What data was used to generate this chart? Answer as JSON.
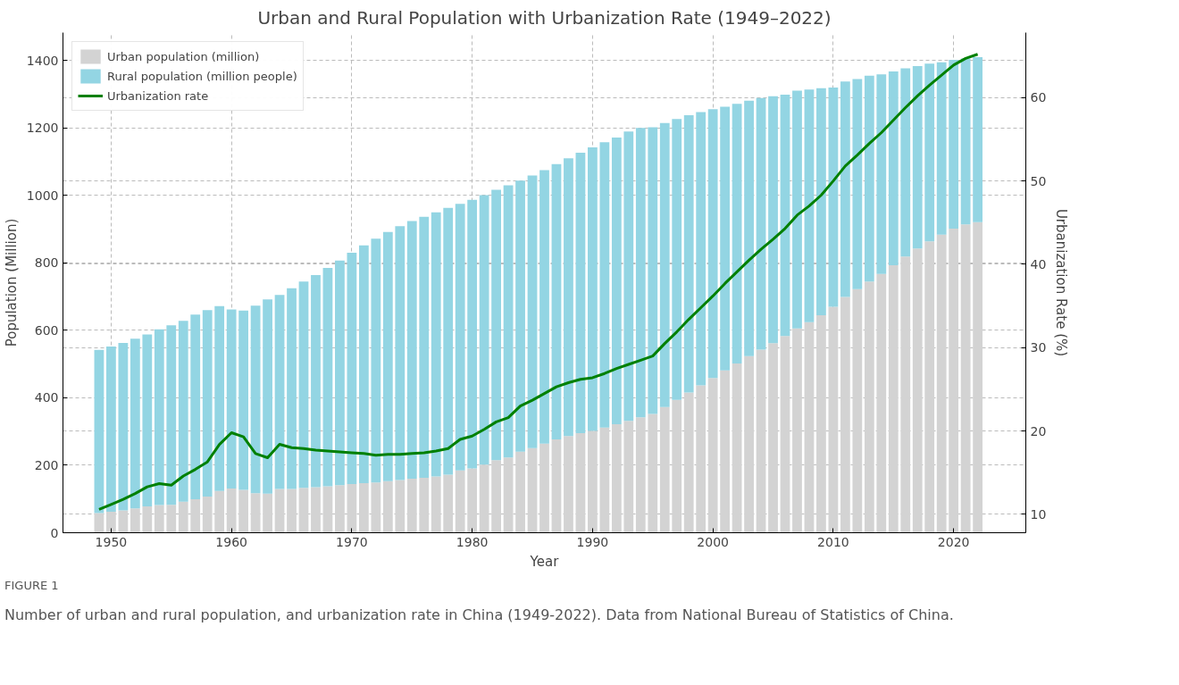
{
  "chart_data": {
    "type": "bar",
    "title": "Urban and Rural Population with Urbanization Rate (1949–2022)",
    "xlabel": "Year",
    "ylabel": "Population (Million)",
    "y2label": "Urbanization Rate (%)",
    "x": [
      1949,
      1950,
      1951,
      1952,
      1953,
      1954,
      1955,
      1956,
      1957,
      1958,
      1959,
      1960,
      1961,
      1962,
      1963,
      1964,
      1965,
      1966,
      1967,
      1968,
      1969,
      1970,
      1971,
      1972,
      1973,
      1974,
      1975,
      1976,
      1977,
      1978,
      1979,
      1980,
      1981,
      1982,
      1983,
      1984,
      1985,
      1986,
      1987,
      1988,
      1989,
      1990,
      1991,
      1992,
      1993,
      1994,
      1995,
      1996,
      1997,
      1998,
      1999,
      2000,
      2001,
      2002,
      2003,
      2004,
      2005,
      2006,
      2007,
      2008,
      2009,
      2010,
      2011,
      2012,
      2013,
      2014,
      2015,
      2016,
      2017,
      2018,
      2019,
      2020,
      2021,
      2022
    ],
    "stacked": true,
    "series": [
      {
        "name": "Urban population (million)",
        "color": "#d3d3d3",
        "values": [
          58,
          62,
          66,
          72,
          78,
          82,
          83,
          92,
          99,
          107,
          124,
          131,
          127,
          117,
          116,
          130,
          130,
          133,
          135,
          138,
          141,
          144,
          147,
          149,
          153,
          156,
          160,
          163,
          167,
          172,
          185,
          191,
          202,
          215,
          223,
          240,
          251,
          264,
          277,
          287,
          295,
          302,
          312,
          322,
          332,
          342,
          352,
          373,
          394,
          416,
          437,
          459,
          481,
          502,
          524,
          543,
          562,
          583,
          606,
          624,
          645,
          670,
          699,
          722,
          745,
          767,
          793,
          819,
          843,
          864,
          884,
          902,
          914,
          921
        ]
      },
      {
        "name": "Rural population (million people)",
        "color": "#93d5e3",
        "values": [
          484,
          490,
          497,
          503,
          510,
          521,
          532,
          536,
          548,
          553,
          548,
          531,
          532,
          556,
          576,
          575,
          595,
          612,
          629,
          647,
          666,
          686,
          705,
          723,
          739,
          753,
          764,
          774,
          783,
          791,
          790,
          796,
          799,
          802,
          807,
          804,
          808,
          811,
          816,
          823,
          832,
          841,
          846,
          850,
          858,
          858,
          850,
          842,
          833,
          822,
          810,
          797,
          782,
          770,
          757,
          746,
          732,
          716,
          705,
          690,
          673,
          650,
          639,
          623,
          610,
          592,
          575,
          558,
          541,
          527,
          511,
          500,
          492,
          489
        ]
      },
      {
        "name": "Urbanization rate",
        "type": "line",
        "axis": "y2",
        "color": "#008000",
        "values": [
          10.6,
          11.2,
          11.8,
          12.5,
          13.3,
          13.7,
          13.5,
          14.6,
          15.4,
          16.3,
          18.4,
          19.8,
          19.3,
          17.3,
          16.8,
          18.4,
          18.0,
          17.9,
          17.7,
          17.6,
          17.5,
          17.4,
          17.3,
          17.1,
          17.2,
          17.2,
          17.3,
          17.4,
          17.6,
          17.9,
          19.0,
          19.4,
          20.2,
          21.1,
          21.6,
          23.0,
          23.7,
          24.5,
          25.3,
          25.8,
          26.2,
          26.4,
          26.9,
          27.5,
          28.0,
          28.5,
          29.0,
          30.5,
          31.9,
          33.4,
          34.8,
          36.2,
          37.7,
          39.1,
          40.5,
          41.8,
          43.0,
          44.3,
          45.9,
          47.0,
          48.3,
          50.0,
          51.8,
          53.1,
          54.5,
          55.8,
          57.3,
          58.8,
          60.2,
          61.5,
          62.7,
          63.9,
          64.7,
          65.2
        ]
      }
    ],
    "xlim": [
      1946,
      2026
    ],
    "xticks": [
      1950,
      1960,
      1970,
      1980,
      1990,
      2000,
      2010,
      2020
    ],
    "ylim": [
      0,
      1483
    ],
    "yticks": [
      0,
      200,
      400,
      600,
      800,
      1000,
      1200,
      1400
    ],
    "y2lim": [
      7.8,
      67.8
    ],
    "y2ticks": [
      10,
      20,
      30,
      40,
      50,
      60
    ],
    "grid": true,
    "legend": "top left",
    "annotations": [
      "FIGURE 1",
      "Number of urban and rural population, and urbanization rate in China (1949-2022). Data from National Bureau of Statistics of China."
    ]
  }
}
